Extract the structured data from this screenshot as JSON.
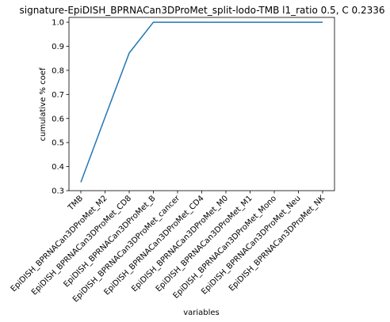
{
  "chart_data": {
    "type": "line",
    "title": "signature-EpiDISH_BPRNACan3DProMet_split-lodo-TMB l1_ratio 0.5, C 0.2336",
    "xlabel": "variables",
    "ylabel": "cumulative % coef",
    "ylim": [
      0.3,
      1.02
    ],
    "yticks": [
      "0.3",
      "0.4",
      "0.5",
      "0.6",
      "0.7",
      "0.8",
      "0.9",
      "1.0"
    ],
    "grid": false,
    "line_color": "#1f77b4",
    "categories": [
      "TMB",
      "EpiDISH_BPRNACan3DProMet_M2",
      "EpiDISH_BPRNACan3DProMet_CD8",
      "EpiDISH_BPRNACan3DProMet_B",
      "EpiDISH_BPRNACan3DProMet_cancer",
      "EpiDISH_BPRNACan3DProMet_CD4",
      "EpiDISH_BPRNACan3DProMet_M0",
      "EpiDISH_BPRNACan3DProMet_M1",
      "EpiDISH_BPRNACan3DProMet_Mono",
      "EpiDISH_BPRNACan3DProMet_Neu",
      "EpiDISH_BPRNACan3DProMet_NK"
    ],
    "values": [
      0.335,
      0.605,
      0.872,
      1.0,
      1.0,
      1.0,
      1.0,
      1.0,
      1.0,
      1.0,
      1.0
    ]
  }
}
